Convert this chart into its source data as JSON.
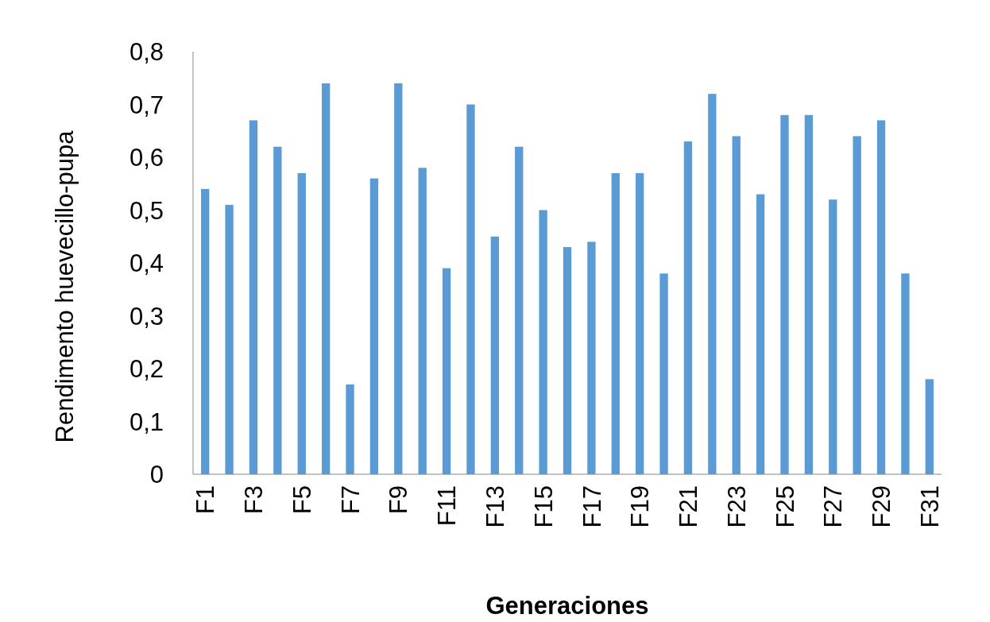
{
  "chart_data": {
    "type": "bar",
    "xlabel": "Generaciones",
    "ylabel": "Rendimento huevecillo-pupa",
    "categories": [
      "F1",
      null,
      "F3",
      null,
      "F5",
      null,
      "F7",
      null,
      "F9",
      null,
      "F11",
      null,
      "F13",
      null,
      "F15",
      null,
      "F17",
      null,
      "F19",
      null,
      "F21",
      null,
      "F23",
      null,
      "F25",
      null,
      "F27",
      null,
      "F29",
      null,
      "F31"
    ],
    "values": [
      0.54,
      0.51,
      0.67,
      0.62,
      0.57,
      0.74,
      0.17,
      0.56,
      0.74,
      0.58,
      0.39,
      0.7,
      0.45,
      0.62,
      0.5,
      0.43,
      0.44,
      0.57,
      0.57,
      0.38,
      0.63,
      0.72,
      0.64,
      0.53,
      0.68,
      0.68,
      0.52,
      0.64,
      0.67,
      0.38,
      0.18
    ],
    "color": "#5b9bd5",
    "ylim": [
      0,
      0.8
    ],
    "yticks": [
      0,
      {
        "value": 0.1,
        "label": "0,1"
      },
      {
        "value": 0.2,
        "label": "0,2"
      },
      {
        "value": 0.3,
        "label": "0,3"
      },
      {
        "value": 0.4,
        "label": "0,4"
      },
      {
        "value": 0.5,
        "label": "0,5"
      },
      {
        "value": 0.6,
        "label": "0,6"
      },
      {
        "value": 0.7,
        "label": "0,7"
      },
      {
        "value": 0.8,
        "label": "0,8"
      }
    ],
    "grid": false
  }
}
